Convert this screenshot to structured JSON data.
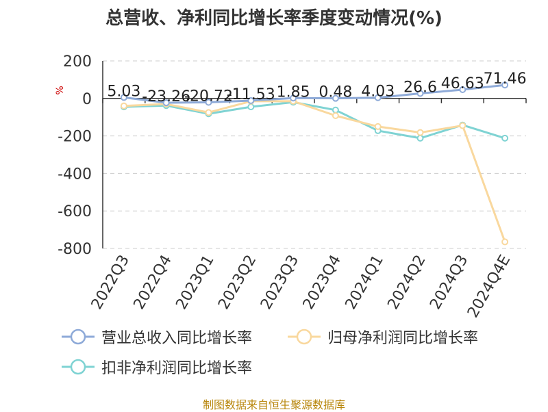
{
  "chart_data": {
    "type": "line",
    "title": "总营收、净利同比增长率季度变动情况(%)",
    "ylabel": "%",
    "categories": [
      "2022Q3",
      "2022Q4",
      "2023Q1",
      "2023Q2",
      "2023Q3",
      "2023Q4",
      "2024Q1",
      "2024Q2",
      "2024Q3",
      "2024Q4E"
    ],
    "ylim": [
      -800,
      200
    ],
    "yticks": [
      200,
      0,
      -200,
      -400,
      -600,
      -800
    ],
    "grid": true,
    "legend_position": "bottom",
    "series": [
      {
        "name": "营业总收入同比增长率",
        "color": "#8eaad8",
        "values": [
          5.03,
          -23.26,
          -20.72,
          -11.53,
          1.85,
          0.48,
          4.03,
          26.6,
          46.63,
          71.46
        ],
        "labels": [
          "5.03",
          "-23.26",
          "-20.72",
          "-11.53",
          "1.85",
          "0.48",
          "4.03",
          "26.6",
          "46.63",
          "71.46"
        ]
      },
      {
        "name": "归母净利润同比增长率",
        "color": "#f9d89e",
        "values": [
          -40,
          -30,
          -75,
          -15,
          -15,
          -92,
          -150,
          -182,
          -145,
          -765
        ]
      },
      {
        "name": "扣非净利润同比增长率",
        "color": "#7fd3d3",
        "values": [
          -45,
          -38,
          -82,
          -45,
          -20,
          -62,
          -172,
          -212,
          -142,
          -212
        ]
      }
    ]
  },
  "source_note": "制图数据来自恒生聚源数据库"
}
